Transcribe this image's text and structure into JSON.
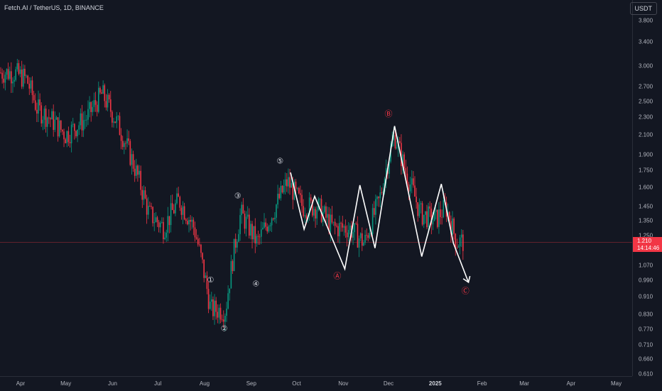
{
  "header": {
    "symbol_title": "Fetch.AI / TetherUS, 1D, BINANCE",
    "currency": "USDT"
  },
  "colors": {
    "background": "#131722",
    "up": "#089981",
    "down": "#f23645",
    "wave": "#ffffff",
    "last_price": "#f23645"
  },
  "last_price": {
    "price": "1.210",
    "countdown": "14:14:46"
  },
  "wave_labels": {
    "w1": "①",
    "w2": "②",
    "w3": "③",
    "w4": "④",
    "w5": "⑤",
    "wA": "Ⓐ",
    "wB": "Ⓑ",
    "wC": "Ⓒ"
  },
  "chart_data": {
    "type": "candlestick",
    "y_scale": "log",
    "ylim": [
      0.6,
      4.0
    ],
    "y_ticks": [
      "3.800",
      "3.400",
      "3.000",
      "2.700",
      "2.500",
      "2.300",
      "2.100",
      "1.900",
      "1.750",
      "1.600",
      "1.450",
      "1.350",
      "1.250",
      "1.070",
      "0.990",
      "0.910",
      "0.830",
      "0.770",
      "0.710",
      "0.660",
      "0.610"
    ],
    "x_ticks": [
      "Apr",
      "May",
      "Jun",
      "Jul",
      "Aug",
      "Sep",
      "Oct",
      "Nov",
      "Dec",
      "2025",
      "Feb",
      "Mar",
      "Apr",
      "May"
    ],
    "candles_close_approx": [
      [
        "2024-03-28",
        2.9
      ],
      [
        "2024-04-05",
        2.8
      ],
      [
        "2024-04-12",
        2.4
      ],
      [
        "2024-04-20",
        2.3
      ],
      [
        "2024-05-01",
        2.1
      ],
      [
        "2024-05-15",
        2.3
      ],
      [
        "2024-05-25",
        2.6
      ],
      [
        "2024-06-05",
        2.2
      ],
      [
        "2024-06-15",
        1.8
      ],
      [
        "2024-06-25",
        1.4
      ],
      [
        "2024-07-05",
        1.3
      ],
      [
        "2024-07-15",
        1.5
      ],
      [
        "2024-07-25",
        1.3
      ],
      [
        "2024-08-05",
        0.85
      ],
      [
        "2024-08-15",
        0.85
      ],
      [
        "2024-08-25",
        1.4
      ],
      [
        "2024-09-05",
        1.2
      ],
      [
        "2024-09-15",
        1.4
      ],
      [
        "2024-09-25",
        1.65
      ],
      [
        "2024-10-05",
        1.45
      ],
      [
        "2024-10-15",
        1.45
      ],
      [
        "2024-10-25",
        1.3
      ],
      [
        "2024-11-05",
        1.3
      ],
      [
        "2024-11-15",
        1.2
      ],
      [
        "2024-11-25",
        1.5
      ],
      [
        "2024-12-05",
        2.1
      ],
      [
        "2024-12-12",
        1.75
      ],
      [
        "2024-12-22",
        1.4
      ],
      [
        "2025-01-01",
        1.35
      ],
      [
        "2025-01-08",
        1.45
      ],
      [
        "2025-01-15",
        1.21
      ]
    ],
    "wave_path": [
      {
        "label": "5",
        "date": "2024-09-27",
        "price": 1.73
      },
      {
        "date": "2024-10-06",
        "price": 1.29
      },
      {
        "date": "2024-10-13",
        "price": 1.53
      },
      {
        "label": "A",
        "date": "2024-11-02",
        "price": 1.05
      },
      {
        "date": "2024-11-12",
        "price": 1.62
      },
      {
        "date": "2024-11-22",
        "price": 1.17
      },
      {
        "label": "B",
        "date": "2024-12-05",
        "price": 2.2
      },
      {
        "date": "2024-12-23",
        "price": 1.12
      },
      {
        "date": "2025-01-05",
        "price": 1.63
      },
      {
        "date": "2025-01-13",
        "price": 1.2
      },
      {
        "label": "C",
        "date": "2025-01-23",
        "price": 0.98
      }
    ],
    "wave_label_points": [
      {
        "key": "w1",
        "date": "2024-08-05",
        "price": 0.99
      },
      {
        "key": "w2",
        "date": "2024-08-14",
        "price": 0.77
      },
      {
        "key": "w3",
        "date": "2024-08-23",
        "price": 1.53
      },
      {
        "key": "w4",
        "date": "2024-09-04",
        "price": 0.97
      },
      {
        "key": "w5",
        "date": "2024-09-20",
        "price": 1.83
      },
      {
        "key": "wA",
        "date": "2024-10-28",
        "price": 1.01
      },
      {
        "key": "wB",
        "date": "2024-12-01",
        "price": 2.34
      },
      {
        "key": "wC",
        "date": "2025-01-21",
        "price": 0.935
      }
    ]
  }
}
